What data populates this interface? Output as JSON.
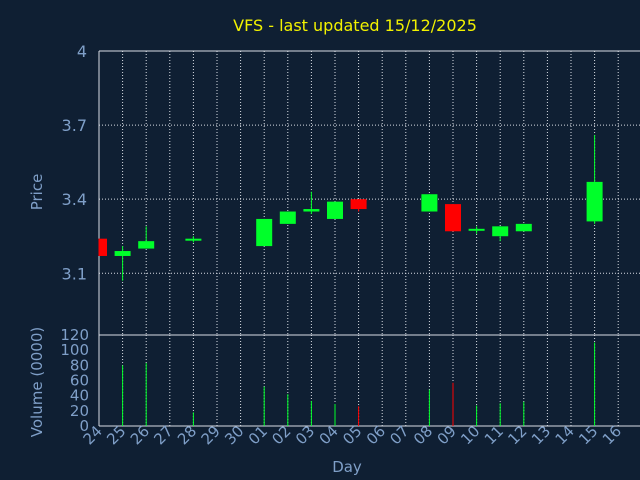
{
  "chart_data": {
    "type": "candlestick",
    "title": "VFS - last updated 15/12/2025",
    "xlabel": "Day",
    "colors": {
      "background": "#0f1f33",
      "title": "#f2f200",
      "axis_text": "#7f9fc8",
      "grid": "#d8dce4",
      "up": "#00ff2a",
      "down": "#ff0000"
    },
    "days": [
      "24",
      "25",
      "26",
      "27",
      "28",
      "29",
      "30",
      "01",
      "02",
      "03",
      "04",
      "05",
      "06",
      "07",
      "08",
      "09",
      "10",
      "11",
      "12",
      "13",
      "14",
      "15",
      "16"
    ],
    "price_panel": {
      "ylabel": "Price",
      "ylim": [
        2.85,
        4.0
      ],
      "yticks": [
        "3.1",
        "3.4",
        "3.7",
        "4"
      ],
      "ytick_values": [
        3.1,
        3.4,
        3.7,
        4.0
      ]
    },
    "volume_panel": {
      "ylabel": "Volume (0000)",
      "ylim": [
        0,
        120
      ],
      "yticks": [
        "0",
        "20",
        "40",
        "60",
        "80",
        "100",
        "120"
      ],
      "ytick_values": [
        0,
        20,
        40,
        60,
        80,
        100,
        120
      ]
    },
    "candles": [
      {
        "day": "24",
        "open": 3.24,
        "high": 3.24,
        "low": 3.17,
        "close": 3.17
      },
      {
        "day": "25",
        "open": 3.17,
        "high": 3.21,
        "low": 3.07,
        "close": 3.19
      },
      {
        "day": "26",
        "open": 3.2,
        "high": 3.29,
        "low": 3.2,
        "close": 3.23
      },
      {
        "day": "28",
        "open": 3.235,
        "high": 3.25,
        "low": 3.225,
        "close": 3.24
      },
      {
        "day": "01",
        "open": 3.21,
        "high": 3.32,
        "low": 3.21,
        "close": 3.32
      },
      {
        "day": "02",
        "open": 3.3,
        "high": 3.35,
        "low": 3.3,
        "close": 3.35
      },
      {
        "day": "03",
        "open": 3.35,
        "high": 3.43,
        "low": 3.34,
        "close": 3.36
      },
      {
        "day": "04",
        "open": 3.32,
        "high": 3.39,
        "low": 3.32,
        "close": 3.39
      },
      {
        "day": "05",
        "open": 3.4,
        "high": 3.4,
        "low": 3.35,
        "close": 3.36
      },
      {
        "day": "08",
        "open": 3.35,
        "high": 3.42,
        "low": 3.35,
        "close": 3.42
      },
      {
        "day": "09",
        "open": 3.38,
        "high": 3.38,
        "low": 3.27,
        "close": 3.27
      },
      {
        "day": "10",
        "open": 3.28,
        "high": 3.29,
        "low": 3.26,
        "close": 3.28
      },
      {
        "day": "11",
        "open": 3.25,
        "high": 3.29,
        "low": 3.23,
        "close": 3.29
      },
      {
        "day": "12",
        "open": 3.27,
        "high": 3.3,
        "low": 3.27,
        "close": 3.3
      },
      {
        "day": "15",
        "open": 3.31,
        "high": 3.66,
        "low": 3.3,
        "close": 3.47
      }
    ],
    "volume": [
      {
        "day": "25",
        "value": 80,
        "direction": "up"
      },
      {
        "day": "26",
        "value": 83,
        "direction": "up"
      },
      {
        "day": "28",
        "value": 18,
        "direction": "up"
      },
      {
        "day": "01",
        "value": 52,
        "direction": "up"
      },
      {
        "day": "02",
        "value": 42,
        "direction": "up"
      },
      {
        "day": "03",
        "value": 33,
        "direction": "up"
      },
      {
        "day": "04",
        "value": 29,
        "direction": "up"
      },
      {
        "day": "05",
        "value": 26,
        "direction": "down"
      },
      {
        "day": "08",
        "value": 48,
        "direction": "up"
      },
      {
        "day": "09",
        "value": 57,
        "direction": "down"
      },
      {
        "day": "10",
        "value": 27,
        "direction": "up"
      },
      {
        "day": "11",
        "value": 30,
        "direction": "up"
      },
      {
        "day": "12",
        "value": 32,
        "direction": "up"
      },
      {
        "day": "15",
        "value": 110,
        "direction": "up"
      }
    ]
  }
}
